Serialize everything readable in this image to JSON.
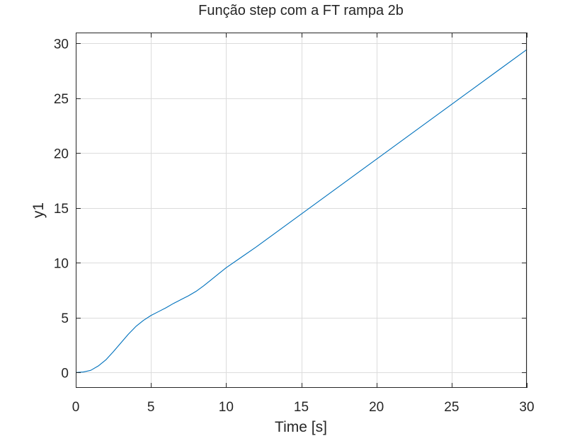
{
  "chart_data": {
    "type": "line",
    "title": "Função step com a FT rampa 2b",
    "xlabel": "Time [s]",
    "ylabel": "y1",
    "xlim": [
      0,
      30
    ],
    "ylim": [
      -1.4,
      31
    ],
    "x_ticks": [
      "0",
      "5",
      "10",
      "15",
      "20",
      "25",
      "30"
    ],
    "y_ticks": [
      "0",
      "5",
      "10",
      "15",
      "20",
      "25",
      "30"
    ],
    "grid": true,
    "box": true,
    "series": [
      {
        "color": "#0072BD",
        "x": [
          0,
          0.5,
          1,
          1.5,
          2,
          2.5,
          3,
          3.5,
          4,
          4.5,
          5,
          5.5,
          6,
          6.5,
          7,
          7.5,
          8,
          8.5,
          9,
          9.5,
          10,
          11,
          12,
          14,
          16,
          18,
          20,
          22,
          24,
          26,
          28,
          30
        ],
        "values": [
          0,
          0.05,
          0.2,
          0.6,
          1.15,
          1.9,
          2.7,
          3.5,
          4.2,
          4.75,
          5.2,
          5.55,
          5.9,
          6.3,
          6.65,
          7.0,
          7.4,
          7.9,
          8.45,
          9.0,
          9.55,
          10.5,
          11.45,
          13.45,
          15.45,
          17.45,
          19.45,
          21.45,
          23.45,
          25.45,
          27.45,
          29.45
        ]
      }
    ]
  }
}
